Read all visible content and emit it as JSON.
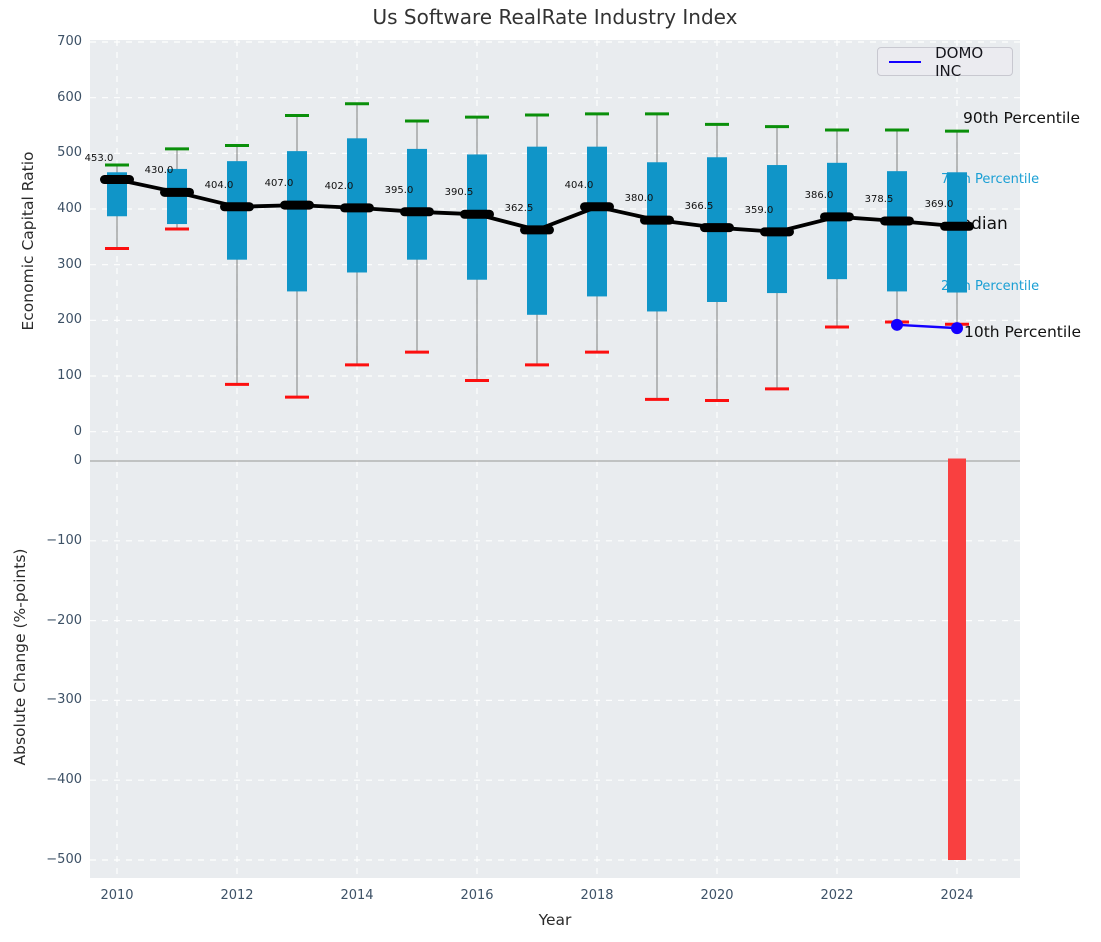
{
  "figure": {
    "title": "Us Software RealRate Industry Index"
  },
  "legend": {
    "label": "DOMO INC"
  },
  "annotations": {
    "p90": "90th Percentile",
    "p75": "75th Percentile",
    "median": "Median",
    "p25": "25th Percentile",
    "p10": "10th Percentile"
  },
  "colors": {
    "box_fill": "#1095c8",
    "p90_cap": "#0a8f0a",
    "p10_cap": "#fc0f0f",
    "median_line": "#000000",
    "series_line": "#1400ff",
    "bar_negative": "#f94040",
    "plot_bg": "#e9ecef",
    "grid": "#ffffff",
    "zero_line": "#b3b3b3",
    "whisker": "#7f7f7f",
    "tick_text": "#3d5166"
  },
  "chart_data": [
    {
      "type": "boxplot",
      "title": "Us Software RealRate Industry Index",
      "ylabel": "Economic Capital Ratio",
      "ylim": [
        -24,
        704
      ],
      "grid": true,
      "legend_position": "upper right",
      "ytick_values": [
        0,
        100,
        200,
        300,
        400,
        500,
        600,
        700
      ],
      "ytick_labels": [
        "0",
        "100",
        "200",
        "300",
        "400",
        "500",
        "600",
        "700"
      ],
      "xtick_years": [
        2010,
        2012,
        2014,
        2016,
        2018,
        2020,
        2022,
        2024
      ],
      "xtick_labels": [
        "2010",
        "2012",
        "2014",
        "2016",
        "2018",
        "2020",
        "2022",
        "2024"
      ],
      "boxes": [
        {
          "year": 2010,
          "p10": 329,
          "p25": 387,
          "median": 453.0,
          "p75": 466,
          "p90": 479,
          "label": "453.0"
        },
        {
          "year": 2011,
          "p10": 364,
          "p25": 373,
          "median": 430.0,
          "p75": 472,
          "p90": 508,
          "label": "430.0"
        },
        {
          "year": 2012,
          "p10": 85,
          "p25": 309,
          "median": 404.0,
          "p75": 486,
          "p90": 514,
          "label": "404.0"
        },
        {
          "year": 2013,
          "p10": 62,
          "p25": 252,
          "median": 407.0,
          "p75": 504,
          "p90": 568,
          "label": "407.0"
        },
        {
          "year": 2014,
          "p10": 120,
          "p25": 286,
          "median": 402.0,
          "p75": 527,
          "p90": 589,
          "label": "402.0"
        },
        {
          "year": 2015,
          "p10": 143,
          "p25": 309,
          "median": 395.0,
          "p75": 508,
          "p90": 558,
          "label": "395.0"
        },
        {
          "year": 2016,
          "p10": 92,
          "p25": 273,
          "median": 390.5,
          "p75": 498,
          "p90": 565,
          "label": "390.5"
        },
        {
          "year": 2017,
          "p10": 120,
          "p25": 210,
          "median": 362.5,
          "p75": 512,
          "p90": 569,
          "label": "362.5"
        },
        {
          "year": 2018,
          "p10": 143,
          "p25": 243,
          "median": 404.0,
          "p75": 512,
          "p90": 571,
          "label": "404.0"
        },
        {
          "year": 2019,
          "p10": 58,
          "p25": 216,
          "median": 380.0,
          "p75": 484,
          "p90": 571,
          "label": "380.0"
        },
        {
          "year": 2020,
          "p10": 56,
          "p25": 233,
          "median": 366.5,
          "p75": 493,
          "p90": 552,
          "label": "366.5"
        },
        {
          "year": 2021,
          "p10": 77,
          "p25": 249,
          "median": 359.0,
          "p75": 479,
          "p90": 548,
          "label": "359.0"
        },
        {
          "year": 2022,
          "p10": 188,
          "p25": 274,
          "median": 386.0,
          "p75": 483,
          "p90": 542,
          "label": "386.0"
        },
        {
          "year": 2023,
          "p10": 197,
          "p25": 252,
          "median": 378.5,
          "p75": 468,
          "p90": 542,
          "label": "378.5"
        },
        {
          "year": 2024,
          "p10": 193,
          "p25": 250,
          "median": 369.0,
          "p75": 466,
          "p90": 540,
          "label": "369.0"
        }
      ],
      "series": [
        {
          "name": "DOMO INC",
          "points": [
            {
              "year": 2023,
              "value": 192
            },
            {
              "year": 2024,
              "value": 186
            }
          ]
        }
      ]
    },
    {
      "type": "bar",
      "ylabel": "Absolute Change (%-points)",
      "xlabel": "Year",
      "ylim": [
        -522,
        20
      ],
      "grid": true,
      "ytick_values": [
        0,
        -100,
        -200,
        -300,
        -400,
        -500
      ],
      "ytick_labels": [
        "0",
        "−100",
        "−200",
        "−300",
        "−400",
        "−500"
      ],
      "bars": [
        {
          "year": 2024,
          "value": -500
        }
      ]
    }
  ]
}
